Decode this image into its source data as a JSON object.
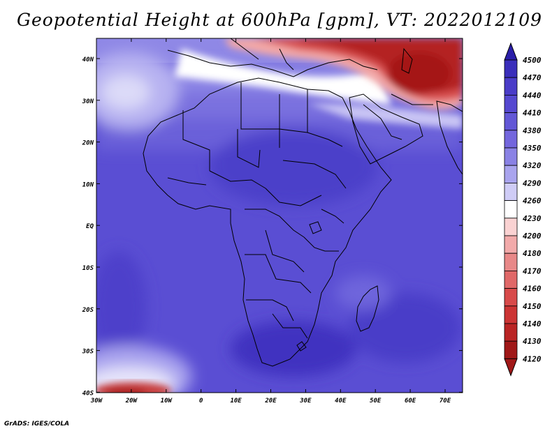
{
  "title": "Geopotential Height at 600hPa [gpm], VT: 2022012109",
  "credit": "GrADS: IGES/COLA",
  "map": {
    "lat_labels": [
      "40N",
      "30N",
      "20N",
      "10N",
      "EQ",
      "10S",
      "20S",
      "30S",
      "40S"
    ],
    "lon_labels": [
      "30W",
      "20W",
      "10W",
      "0",
      "10E",
      "20E",
      "30E",
      "40E",
      "50E",
      "60E",
      "70E"
    ],
    "lon_range": [
      -30,
      75
    ],
    "lat_range": [
      -40,
      45
    ]
  },
  "colorbar": {
    "labels": [
      "4500",
      "4470",
      "4440",
      "4410",
      "4380",
      "4350",
      "4320",
      "4290",
      "4260",
      "4230",
      "4200",
      "4180",
      "4170",
      "4160",
      "4150",
      "4140",
      "4130",
      "4120"
    ],
    "colors": [
      "#2a1ea8",
      "#3a2ebb",
      "#4a3cc8",
      "#5548d0",
      "#6257d6",
      "#7366dd",
      "#8a82e5",
      "#a9a4ee",
      "#cfccf6",
      "#ffffff",
      "#fad2d2",
      "#f2aaaa",
      "#e88888",
      "#e06868",
      "#d84a4a",
      "#cc3434",
      "#ba2424",
      "#a01818"
    ]
  },
  "colors": {
    "background": "#ffffff",
    "coast": "#000000"
  }
}
